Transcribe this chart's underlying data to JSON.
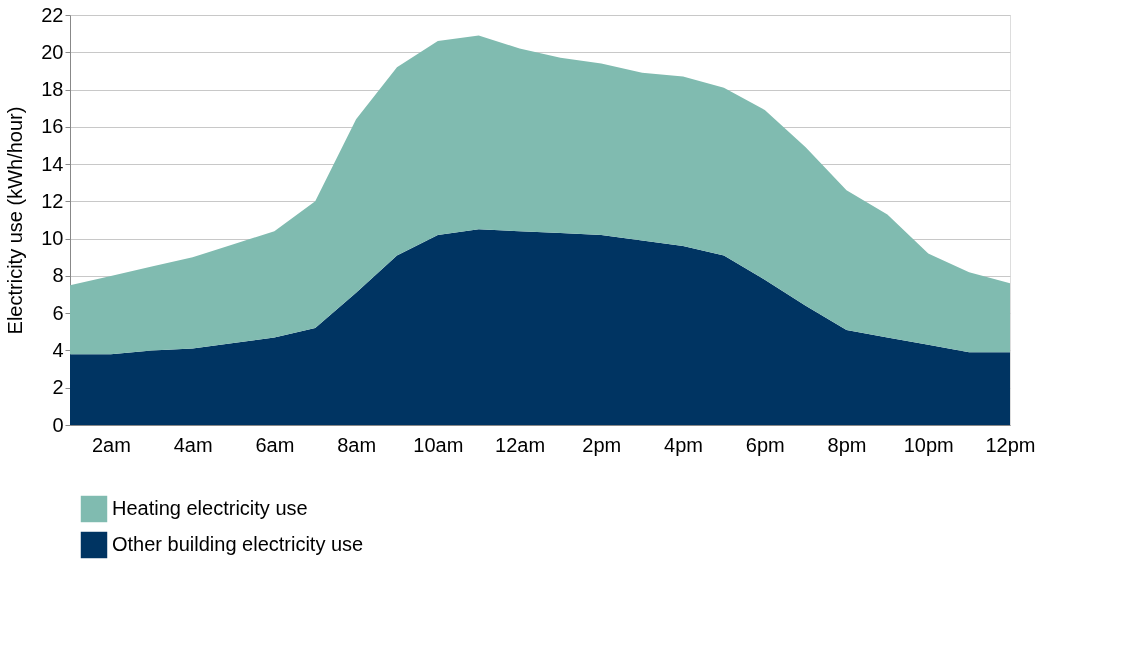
{
  "chart_data": {
    "type": "area",
    "stacked": true,
    "ylabel": "Electricity use (kWh/hour)",
    "categories": [
      null,
      "2am",
      null,
      "4am",
      null,
      "6am",
      null,
      "8am",
      null,
      "10am",
      null,
      "12am",
      null,
      "2pm",
      null,
      "4pm",
      null,
      "6pm",
      null,
      "8pm",
      null,
      "10pm",
      null,
      "12pm"
    ],
    "series": [
      {
        "name": "Other building electricity use",
        "color": "#003462",
        "values": [
          3.8,
          3.8,
          4.0,
          4.1,
          4.4,
          4.7,
          5.2,
          7.1,
          9.1,
          10.2,
          10.5,
          10.4,
          10.3,
          10.2,
          9.9,
          9.6,
          9.1,
          7.8,
          6.4,
          5.1,
          4.7,
          4.3,
          3.9,
          3.9
        ]
      },
      {
        "name": "Heating electricity use",
        "color": "#80bbb0",
        "values": [
          3.7,
          4.2,
          4.5,
          4.9,
          5.3,
          5.7,
          6.8,
          9.3,
          10.1,
          10.4,
          10.4,
          9.8,
          9.4,
          9.2,
          9.0,
          9.1,
          9.0,
          9.1,
          8.5,
          7.5,
          6.6,
          4.9,
          4.3,
          3.7
        ]
      }
    ],
    "ylim": [
      0,
      22
    ],
    "yticks": [
      0,
      2,
      4,
      6,
      8,
      10,
      12,
      14,
      16,
      18,
      20,
      22
    ],
    "grid": "y",
    "legend": "bottom left"
  }
}
